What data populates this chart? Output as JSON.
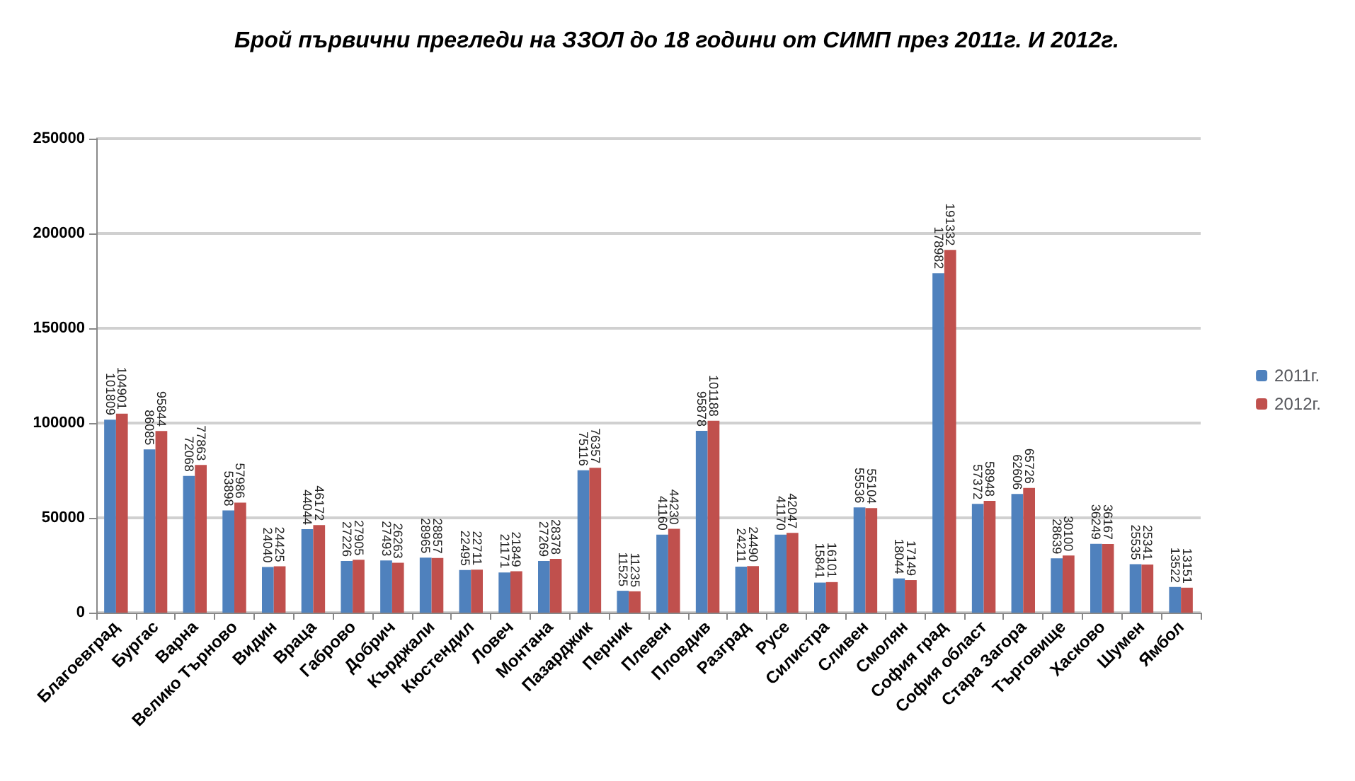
{
  "chart_data": {
    "type": "bar",
    "title": "Брой първични прегледи на ЗЗОЛ до 18 години от СИМП през 2011г. И 2012г.",
    "categories": [
      "Благоевград",
      "Бургас",
      "Варна",
      "Велико Търново",
      "Видин",
      "Враца",
      "Габрово",
      "Добрич",
      "Кърджали",
      "Кюстендил",
      "Ловеч",
      "Монтана",
      "Пазарджик",
      "Перник",
      "Плевен",
      "Пловдив",
      "Разград",
      "Русе",
      "Силистра",
      "Сливен",
      "Смолян",
      "София град",
      "София област",
      "Стара Загора",
      "Търговище",
      "Хасково",
      "Шумен",
      "Ямбол"
    ],
    "series": [
      {
        "name": "2011г.",
        "color": "#4f81bd",
        "values": [
          101809,
          86085,
          72068,
          53898,
          24040,
          44044,
          27226,
          27493,
          28965,
          22495,
          21171,
          27269,
          75116,
          11525,
          41160,
          95878,
          24211,
          41170,
          15841,
          55536,
          18044,
          178982,
          57372,
          62606,
          28639,
          36249,
          25535,
          13522
        ]
      },
      {
        "name": "2012г.",
        "color": "#c0504d",
        "values": [
          104901,
          95844,
          77863,
          57986,
          24425,
          46172,
          27905,
          26263,
          28857,
          22711,
          21849,
          28378,
          76357,
          11235,
          44230,
          101188,
          24490,
          42047,
          16101,
          55104,
          17149,
          191332,
          58948,
          65726,
          30100,
          36167,
          25341,
          13151
        ]
      }
    ],
    "ylim": [
      0,
      250000
    ],
    "yticks": [
      0,
      50000,
      100000,
      150000,
      200000,
      250000
    ],
    "grid": "y",
    "legend": "right",
    "data_labels": true
  }
}
